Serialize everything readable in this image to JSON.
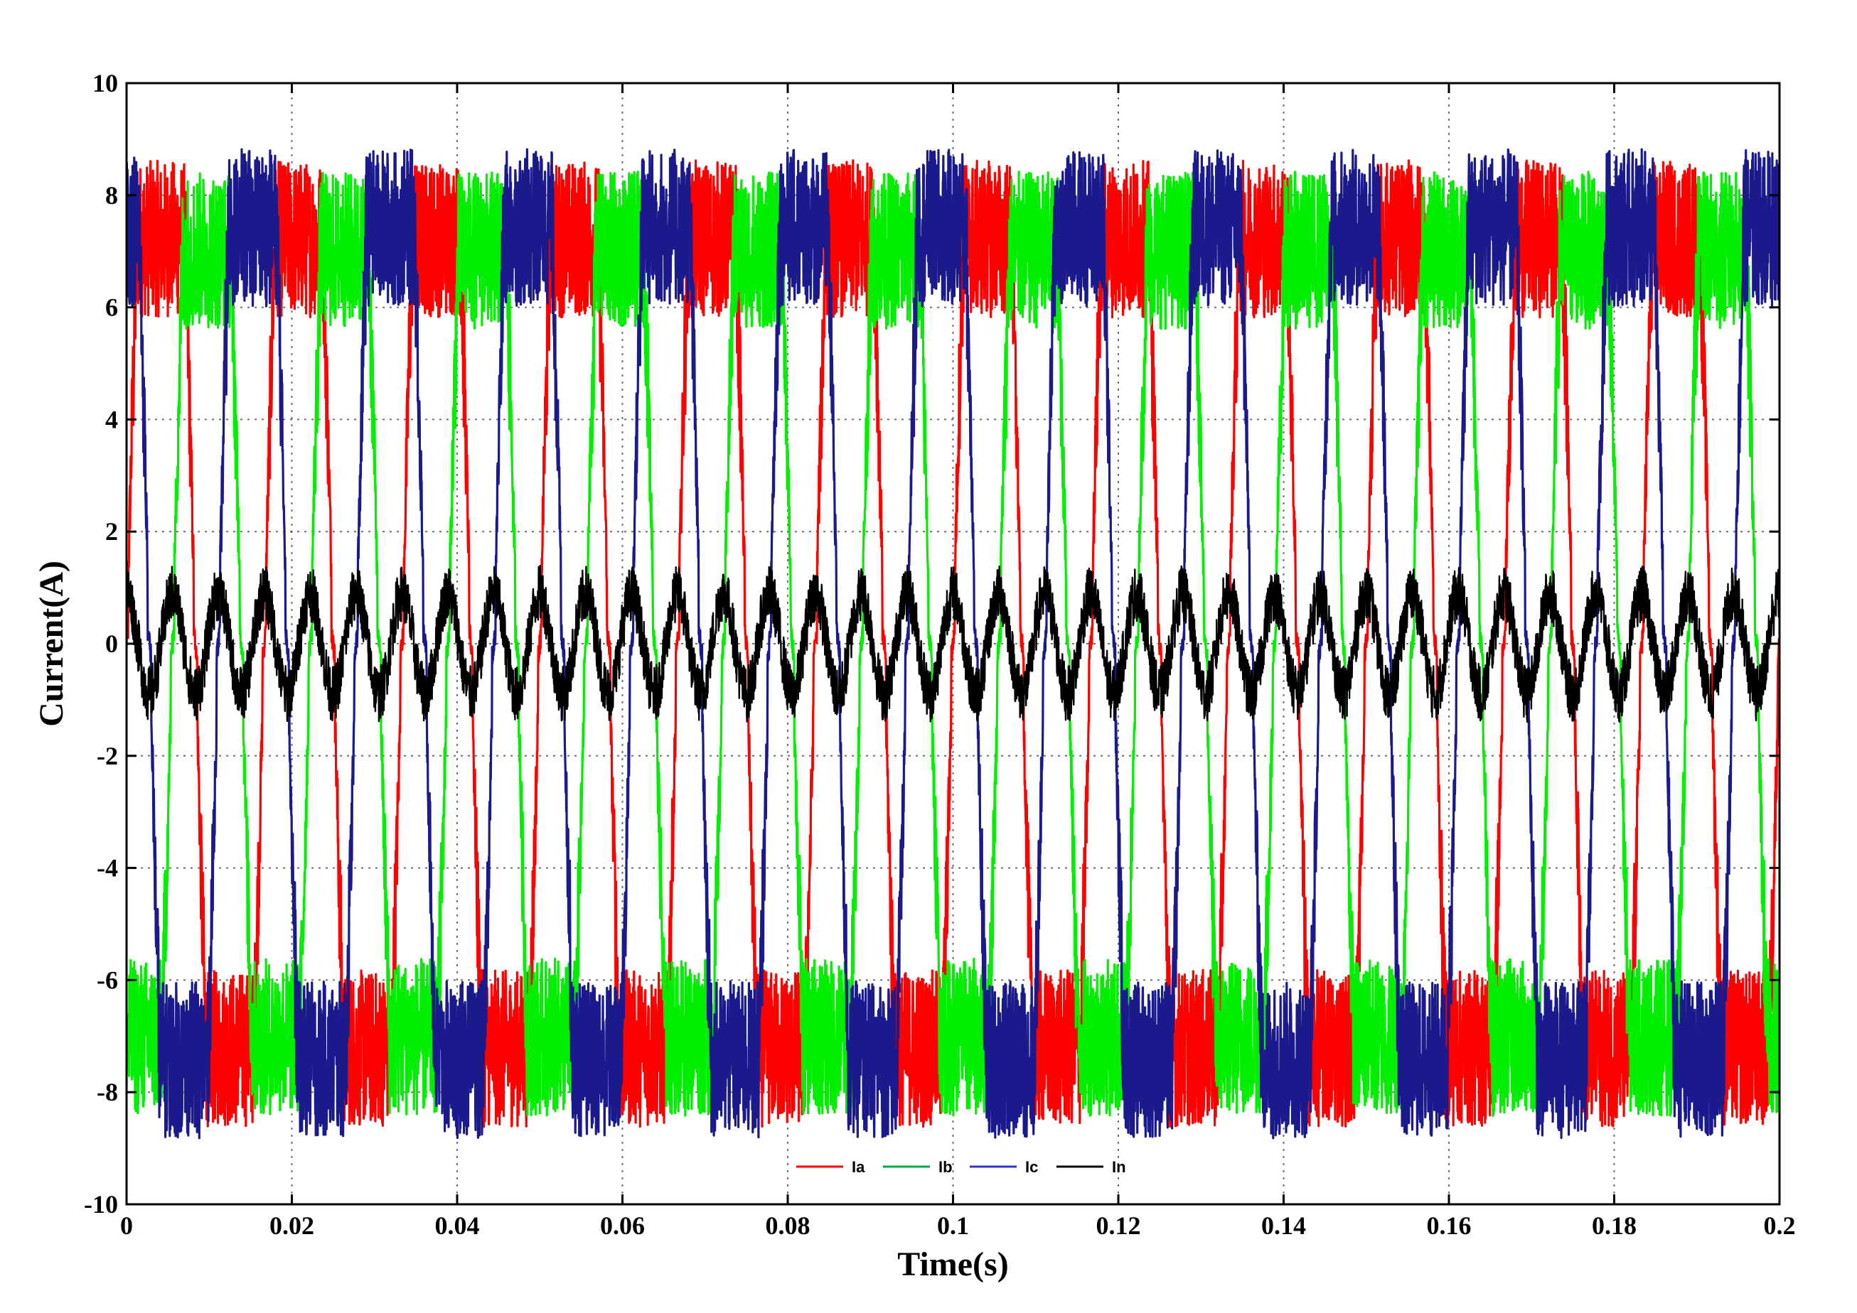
{
  "chart_data": {
    "type": "line",
    "title": "",
    "xlabel": "Time(s)",
    "ylabel": "Current(A)",
    "xlim": [
      0,
      0.2
    ],
    "ylim": [
      -10,
      10
    ],
    "grid": true,
    "legend_position": "bottom-center",
    "x_ticks": [
      {
        "value": 0,
        "label": "0"
      },
      {
        "value": 0.02,
        "label": "0.02"
      },
      {
        "value": 0.04,
        "label": "0.04"
      },
      {
        "value": 0.06,
        "label": "0.06"
      },
      {
        "value": 0.08,
        "label": "0.08"
      },
      {
        "value": 0.1,
        "label": "0.1"
      },
      {
        "value": 0.12,
        "label": "0.12"
      },
      {
        "value": 0.14,
        "label": "0.14"
      },
      {
        "value": 0.16,
        "label": "0.16"
      },
      {
        "value": 0.18,
        "label": "0.18"
      },
      {
        "value": 0.2,
        "label": "0.2"
      }
    ],
    "y_ticks": [
      {
        "value": 10,
        "label": "10"
      },
      {
        "value": 8,
        "label": "8"
      },
      {
        "value": 6,
        "label": "6"
      },
      {
        "value": 4,
        "label": "4"
      },
      {
        "value": 2,
        "label": "2"
      },
      {
        "value": 0,
        "label": "0"
      },
      {
        "value": -2,
        "label": "-2"
      },
      {
        "value": -4,
        "label": "-4"
      },
      {
        "value": -6,
        "label": "-6"
      },
      {
        "value": -8,
        "label": "-8"
      },
      {
        "value": -10,
        "label": "-10"
      }
    ],
    "series": [
      {
        "name": "Ia",
        "color": "#ff0000",
        "kind": "phase",
        "amplitude": 8.2,
        "ripple": 2.8,
        "frequency_hz": 60,
        "phase_deg": 0
      },
      {
        "name": "Ib",
        "color": "#00ee00",
        "kind": "phase",
        "amplitude": 8.0,
        "ripple": 2.8,
        "frequency_hz": 60,
        "phase_deg": -120
      },
      {
        "name": "Ic",
        "color": "#1a1a8c",
        "kind": "phase",
        "amplitude": 8.4,
        "ripple": 2.8,
        "frequency_hz": 60,
        "phase_deg": 120
      },
      {
        "name": "In",
        "color": "#000000",
        "kind": "neutral",
        "amplitude": 0.9,
        "ripple": 0.5,
        "frequency_hz": 180,
        "phase_deg": 90
      }
    ],
    "legend_colors": {
      "Ia": "#ff0000",
      "Ib": "#00aa44",
      "Ic": "#3333cc",
      "In": "#000000"
    }
  }
}
